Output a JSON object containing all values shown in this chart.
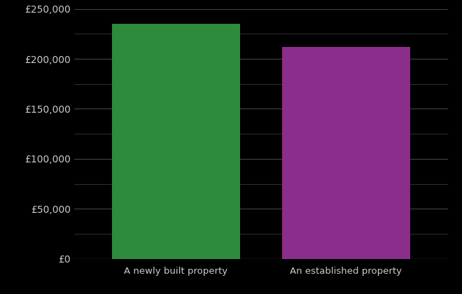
{
  "categories": [
    "A newly built property",
    "An established property"
  ],
  "values": [
    235000,
    212000
  ],
  "bar_colors": [
    "#2d8b3e",
    "#8b2d8b"
  ],
  "background_color": "#000000",
  "text_color": "#cccccc",
  "grid_color": "#444444",
  "ylim": [
    0,
    250000
  ],
  "yticks_major": [
    0,
    50000,
    100000,
    150000,
    200000,
    250000
  ],
  "yticks_minor": [
    25000,
    75000,
    125000,
    175000,
    225000
  ],
  "bar_width": 0.75,
  "figsize": [
    6.6,
    4.2
  ],
  "dpi": 100
}
